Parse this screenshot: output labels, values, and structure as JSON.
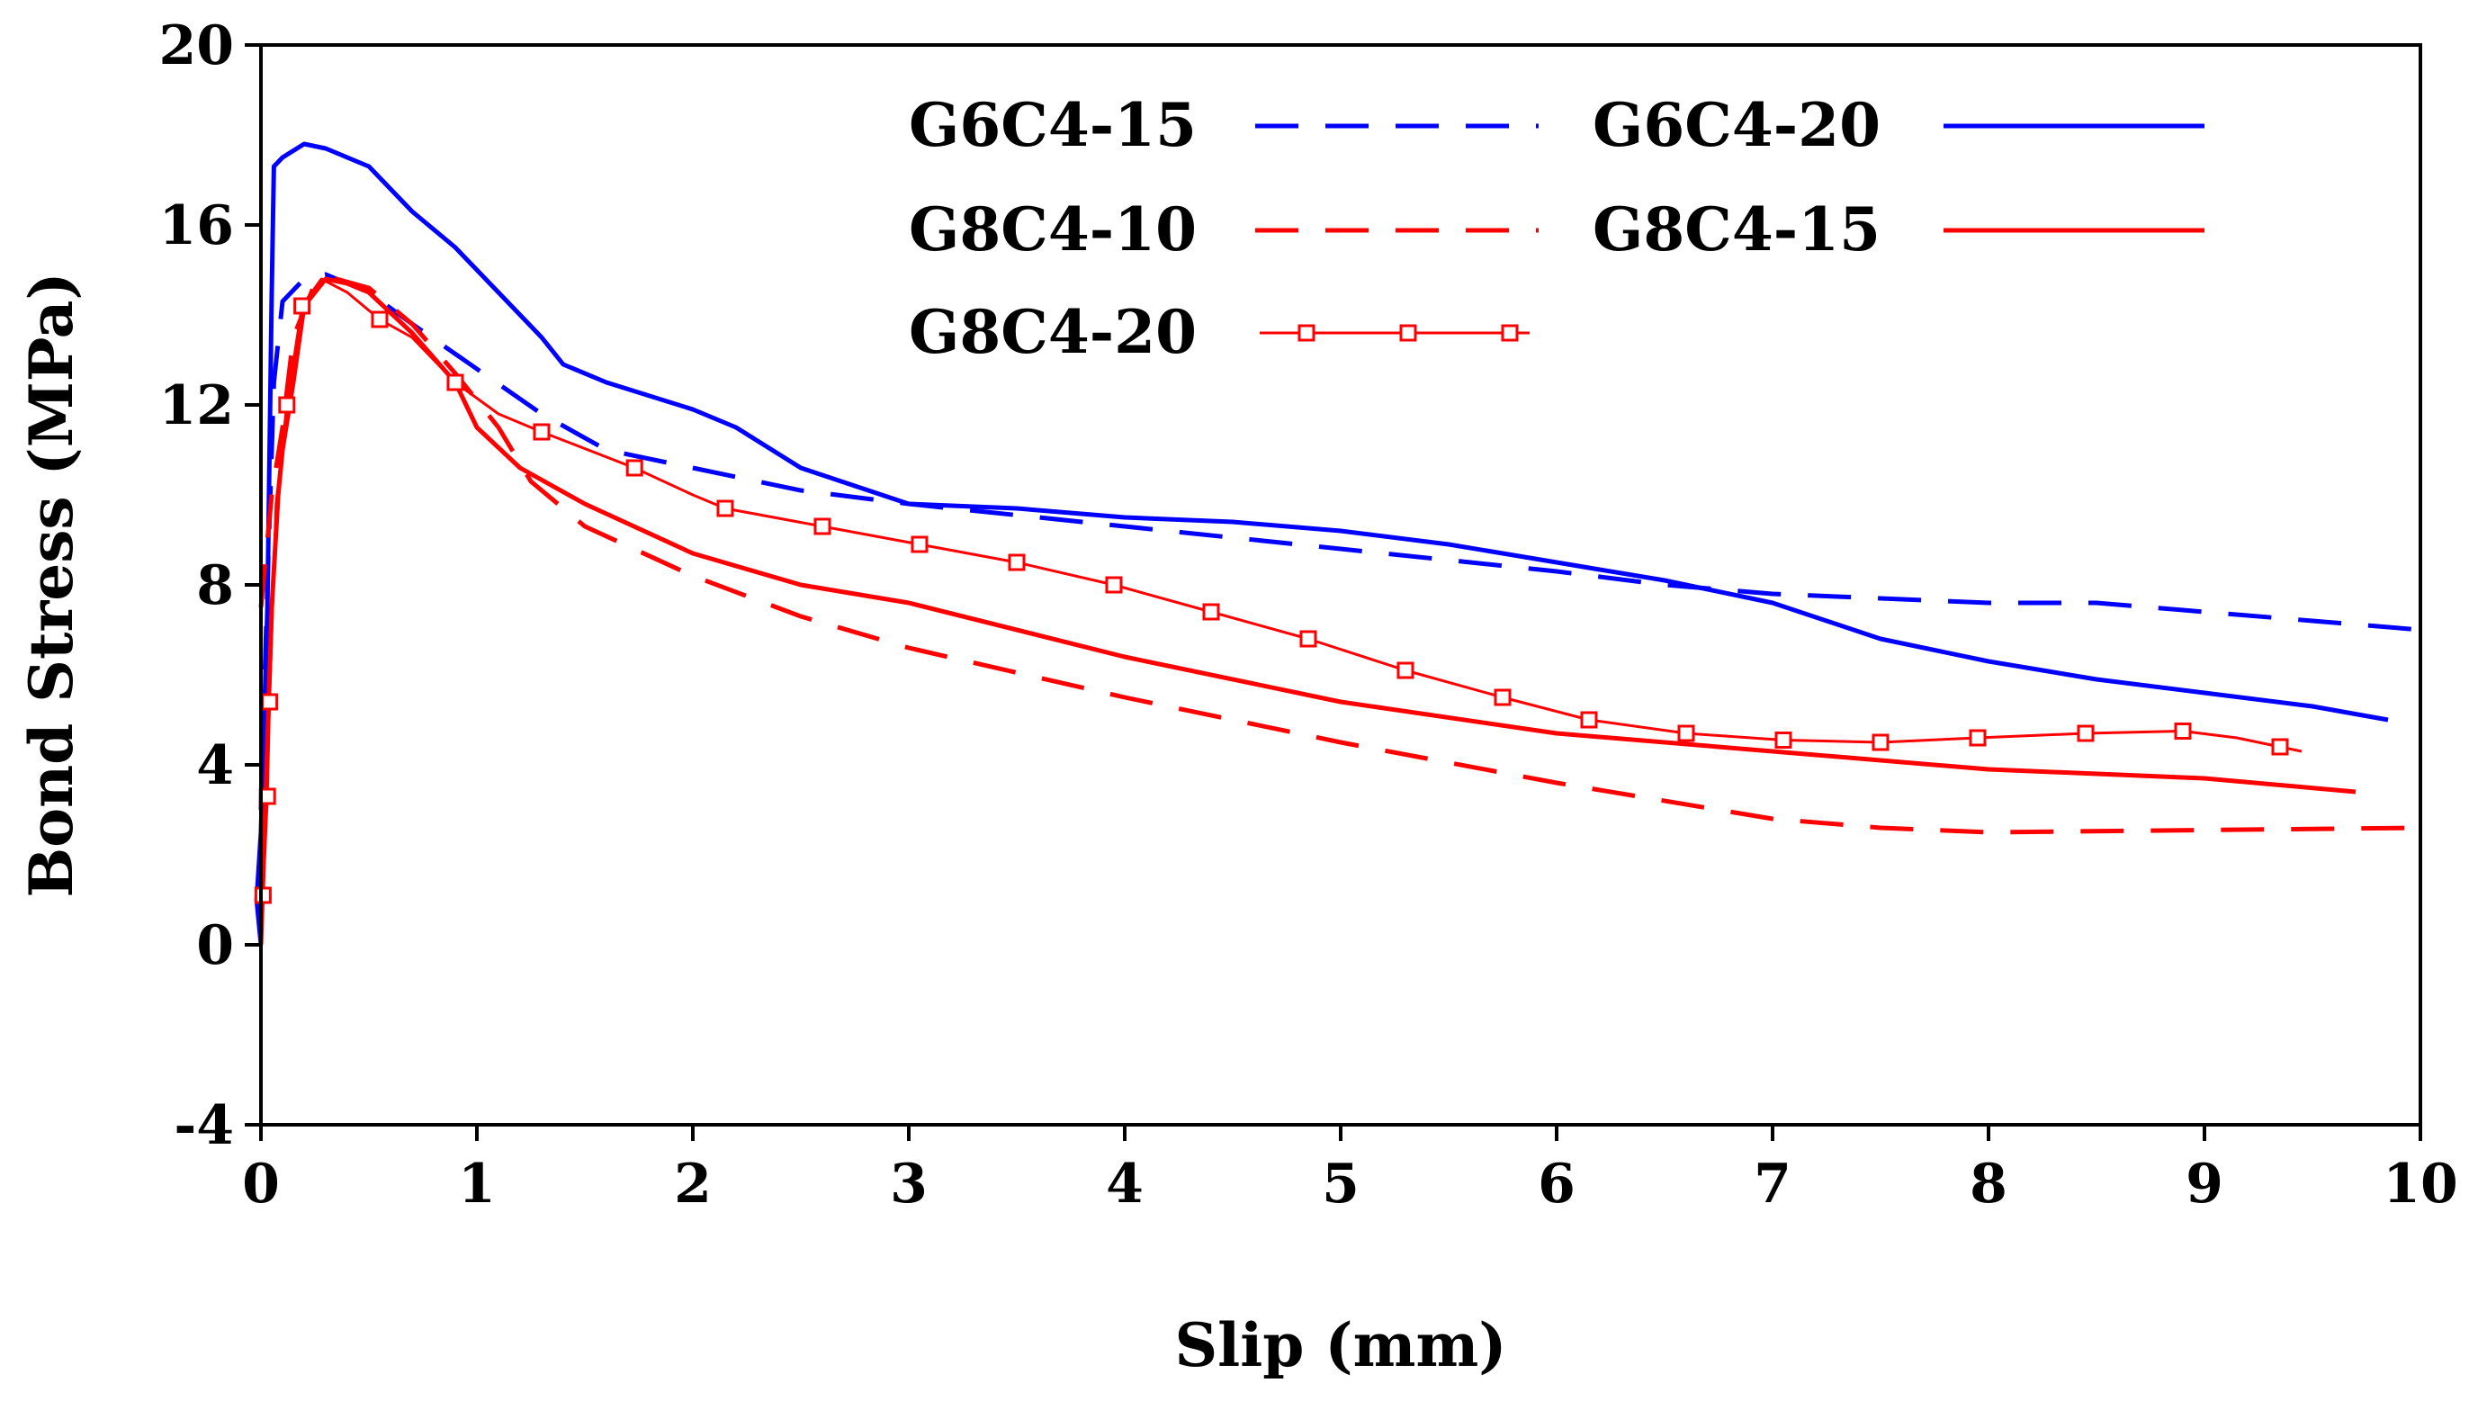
{
  "chart_data": {
    "type": "line",
    "title": "",
    "xlabel": "Slip (mm)",
    "ylabel": "Bond Stress (MPa)",
    "xlim": [
      0,
      10
    ],
    "ylim": [
      -4,
      20
    ],
    "xticks": [
      0,
      1,
      2,
      3,
      4,
      5,
      6,
      7,
      8,
      9,
      10
    ],
    "yticks": [
      -4,
      0,
      4,
      8,
      12,
      16,
      20
    ],
    "grid": false,
    "legend": "top-center",
    "series": [
      {
        "name": "G6C4-15",
        "color": "#0000ff",
        "style": "dashed",
        "marker": "none",
        "points": [
          [
            0.0,
            3.0
          ],
          [
            0.03,
            8.0
          ],
          [
            0.06,
            12.5
          ],
          [
            0.1,
            14.3
          ],
          [
            0.2,
            14.8
          ],
          [
            0.3,
            14.9
          ],
          [
            0.5,
            14.5
          ],
          [
            0.7,
            13.8
          ],
          [
            1.0,
            12.8
          ],
          [
            1.3,
            11.8
          ],
          [
            1.6,
            11.0
          ],
          [
            2.0,
            10.6
          ],
          [
            2.5,
            10.1
          ],
          [
            3.0,
            9.8
          ],
          [
            4.0,
            9.3
          ],
          [
            5.0,
            8.8
          ],
          [
            6.0,
            8.3
          ],
          [
            6.5,
            8.0
          ],
          [
            7.0,
            7.8
          ],
          [
            7.5,
            7.7
          ],
          [
            8.0,
            7.6
          ],
          [
            8.5,
            7.6
          ],
          [
            9.0,
            7.4
          ],
          [
            9.5,
            7.2
          ],
          [
            10.0,
            7.0
          ]
        ]
      },
      {
        "name": "G6C4-20",
        "color": "#0000ff",
        "style": "solid",
        "marker": "none",
        "points": [
          [
            0.0,
            0.0
          ],
          [
            -0.02,
            1.0
          ],
          [
            0.0,
            2.5
          ],
          [
            0.03,
            7.5
          ],
          [
            0.05,
            14.5
          ],
          [
            0.06,
            17.3
          ],
          [
            0.1,
            17.5
          ],
          [
            0.2,
            17.8
          ],
          [
            0.3,
            17.7
          ],
          [
            0.5,
            17.3
          ],
          [
            0.7,
            16.3
          ],
          [
            0.9,
            15.5
          ],
          [
            1.1,
            14.5
          ],
          [
            1.3,
            13.5
          ],
          [
            1.4,
            12.9
          ],
          [
            1.6,
            12.5
          ],
          [
            2.0,
            11.9
          ],
          [
            2.2,
            11.5
          ],
          [
            2.5,
            10.6
          ],
          [
            3.0,
            9.8
          ],
          [
            3.5,
            9.7
          ],
          [
            4.0,
            9.5
          ],
          [
            4.5,
            9.4
          ],
          [
            5.0,
            9.2
          ],
          [
            5.5,
            8.9
          ],
          [
            6.0,
            8.5
          ],
          [
            6.5,
            8.1
          ],
          [
            7.0,
            7.6
          ],
          [
            7.5,
            6.8
          ],
          [
            8.0,
            6.3
          ],
          [
            8.5,
            5.9
          ],
          [
            9.0,
            5.6
          ],
          [
            9.5,
            5.3
          ],
          [
            9.85,
            5.0
          ]
        ]
      },
      {
        "name": "G8C4-10",
        "color": "#ff0000",
        "style": "dashed",
        "marker": "none",
        "points": [
          [
            0.0,
            7.5
          ],
          [
            0.05,
            10.0
          ],
          [
            0.1,
            11.5
          ],
          [
            0.15,
            13.5
          ],
          [
            0.25,
            14.7
          ],
          [
            0.35,
            14.8
          ],
          [
            0.5,
            14.6
          ],
          [
            0.7,
            13.8
          ],
          [
            0.9,
            12.7
          ],
          [
            1.1,
            11.5
          ],
          [
            1.25,
            10.3
          ],
          [
            1.5,
            9.3
          ],
          [
            2.0,
            8.2
          ],
          [
            2.5,
            7.3
          ],
          [
            3.0,
            6.6
          ],
          [
            4.0,
            5.5
          ],
          [
            5.0,
            4.5
          ],
          [
            6.0,
            3.6
          ],
          [
            7.0,
            2.8
          ],
          [
            7.5,
            2.6
          ],
          [
            8.0,
            2.5
          ],
          [
            9.0,
            2.55
          ],
          [
            10.0,
            2.6
          ]
        ]
      },
      {
        "name": "G8C4-15",
        "color": "#ff0000",
        "style": "solid",
        "marker": "none",
        "points": [
          [
            0.0,
            0.0
          ],
          [
            0.02,
            3.0
          ],
          [
            0.05,
            7.5
          ],
          [
            0.08,
            10.0
          ],
          [
            0.1,
            11.0
          ],
          [
            0.15,
            12.5
          ],
          [
            0.2,
            14.2
          ],
          [
            0.3,
            14.8
          ],
          [
            0.4,
            14.7
          ],
          [
            0.5,
            14.5
          ],
          [
            0.7,
            13.6
          ],
          [
            0.9,
            12.5
          ],
          [
            1.0,
            11.5
          ],
          [
            1.2,
            10.6
          ],
          [
            1.5,
            9.8
          ],
          [
            2.0,
            8.7
          ],
          [
            2.5,
            8.0
          ],
          [
            3.0,
            7.6
          ],
          [
            4.0,
            6.4
          ],
          [
            5.0,
            5.4
          ],
          [
            6.0,
            4.7
          ],
          [
            7.0,
            4.3
          ],
          [
            8.0,
            3.9
          ],
          [
            9.0,
            3.7
          ],
          [
            9.7,
            3.4
          ]
        ]
      },
      {
        "name": "G8C4-20",
        "color": "#ff0000",
        "style": "solid-thin",
        "marker": "square",
        "points": [
          [
            0.0,
            0.0
          ],
          [
            0.01,
            1.1
          ],
          [
            0.03,
            3.3
          ],
          [
            0.04,
            5.4
          ],
          [
            0.07,
            9.8
          ],
          [
            0.12,
            12.0
          ],
          [
            0.19,
            14.2
          ],
          [
            0.28,
            14.8
          ],
          [
            0.4,
            14.5
          ],
          [
            0.55,
            13.9
          ],
          [
            0.7,
            13.5
          ],
          [
            0.9,
            12.5
          ],
          [
            1.1,
            11.8
          ],
          [
            1.3,
            11.4
          ],
          [
            1.73,
            10.6
          ],
          [
            2.0,
            10.0
          ],
          [
            2.15,
            9.7
          ],
          [
            2.6,
            9.3
          ],
          [
            3.05,
            8.9
          ],
          [
            3.5,
            8.5
          ],
          [
            3.95,
            8.0
          ],
          [
            4.4,
            7.4
          ],
          [
            4.85,
            6.8
          ],
          [
            5.3,
            6.1
          ],
          [
            5.75,
            5.5
          ],
          [
            6.15,
            5.0
          ],
          [
            6.6,
            4.7
          ],
          [
            7.05,
            4.55
          ],
          [
            7.5,
            4.5
          ],
          [
            7.95,
            4.6
          ],
          [
            8.45,
            4.7
          ],
          [
            8.9,
            4.75
          ],
          [
            9.15,
            4.6
          ],
          [
            9.35,
            4.4
          ],
          [
            9.45,
            4.3
          ]
        ],
        "marker_points": [
          [
            0.01,
            1.1
          ],
          [
            0.03,
            3.3
          ],
          [
            0.04,
            5.4
          ],
          [
            0.12,
            12.0
          ],
          [
            0.19,
            14.2
          ],
          [
            0.55,
            13.9
          ],
          [
            0.9,
            12.5
          ],
          [
            1.3,
            11.4
          ],
          [
            1.73,
            10.6
          ],
          [
            2.15,
            9.7
          ],
          [
            2.6,
            9.3
          ],
          [
            3.05,
            8.9
          ],
          [
            3.5,
            8.5
          ],
          [
            3.95,
            8.0
          ],
          [
            4.4,
            7.4
          ],
          [
            4.85,
            6.8
          ],
          [
            5.3,
            6.1
          ],
          [
            5.75,
            5.5
          ],
          [
            6.15,
            5.0
          ],
          [
            6.6,
            4.7
          ],
          [
            7.05,
            4.55
          ],
          [
            7.5,
            4.5
          ],
          [
            7.95,
            4.6
          ],
          [
            8.45,
            4.7
          ],
          [
            8.9,
            4.75
          ],
          [
            9.35,
            4.4
          ]
        ]
      }
    ]
  }
}
